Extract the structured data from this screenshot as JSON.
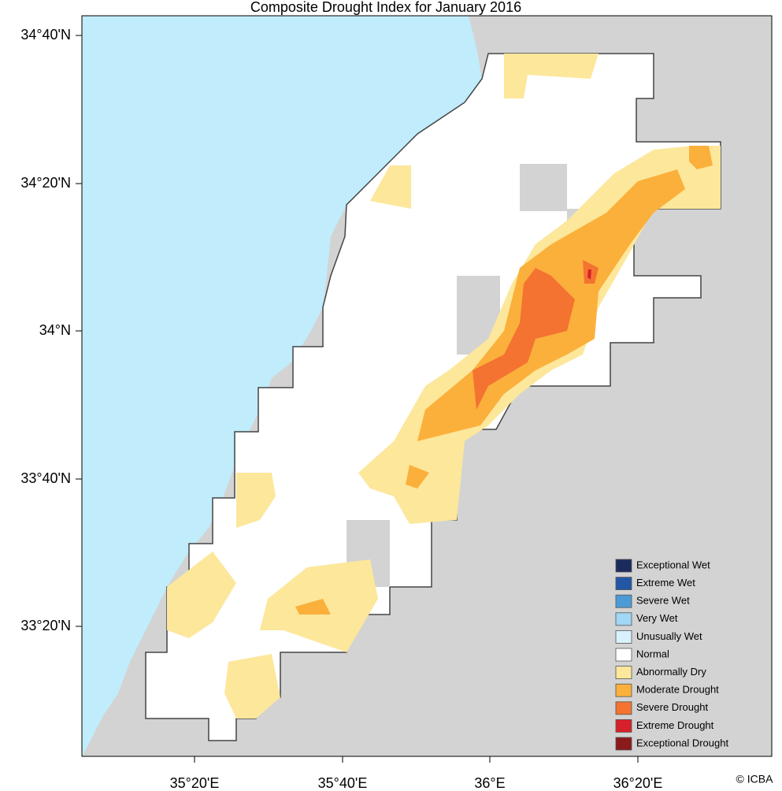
{
  "map": {
    "title": "Composite Drought Index for January 2016",
    "y_axis_labels": [
      "34°40'N",
      "34°20'N",
      "34°N",
      "33°40'N",
      "33°20'N"
    ],
    "x_axis_labels": [
      "35°20'E",
      "35°40'E",
      "36°E",
      "36°20'E"
    ],
    "legend": [
      {
        "label": "Exceptional Wet",
        "color": "#1b2b5e"
      },
      {
        "label": "Extreme Wet",
        "color": "#2356a5"
      },
      {
        "label": "Severe Wet",
        "color": "#4c9bd6"
      },
      {
        "label": "Very Wet",
        "color": "#9fd7f5"
      },
      {
        "label": "Unusually Wet",
        "color": "#d9f1fa"
      },
      {
        "label": "Normal",
        "color": "#ffffff"
      },
      {
        "label": "Abnormally Dry",
        "color": "#fce79b"
      },
      {
        "label": "Moderate Drought",
        "color": "#fbb03b"
      },
      {
        "label": "Severe Drought",
        "color": "#f47331"
      },
      {
        "label": "Extreme Drought",
        "color": "#d7202a"
      },
      {
        "label": "Exceptional Drought",
        "color": "#8b1a1a"
      }
    ],
    "credit": "© ICBA"
  }
}
